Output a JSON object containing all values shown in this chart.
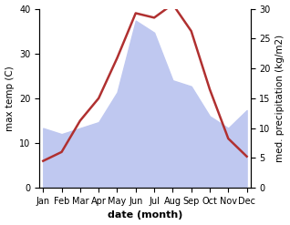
{
  "months": [
    "Jan",
    "Feb",
    "Mar",
    "Apr",
    "May",
    "Jun",
    "Jul",
    "Aug",
    "Sep",
    "Oct",
    "Nov",
    "Dec"
  ],
  "temperature": [
    6,
    8,
    15,
    20,
    29,
    39,
    38,
    41,
    35,
    22,
    11,
    7
  ],
  "precipitation": [
    10,
    9,
    10,
    11,
    16,
    28,
    26,
    18,
    17,
    12,
    10,
    13
  ],
  "temp_ylim": [
    0,
    40
  ],
  "precip_ylim": [
    0,
    30
  ],
  "temp_color": "#b03030",
  "precip_fill_color": "#bfc8f0",
  "xlabel": "date (month)",
  "ylabel_left": "max temp (C)",
  "ylabel_right": "med. precipitation (kg/m2)",
  "temp_linewidth": 1.8,
  "background_color": "#ffffff",
  "fig_width": 3.18,
  "fig_height": 2.47,
  "dpi": 100
}
